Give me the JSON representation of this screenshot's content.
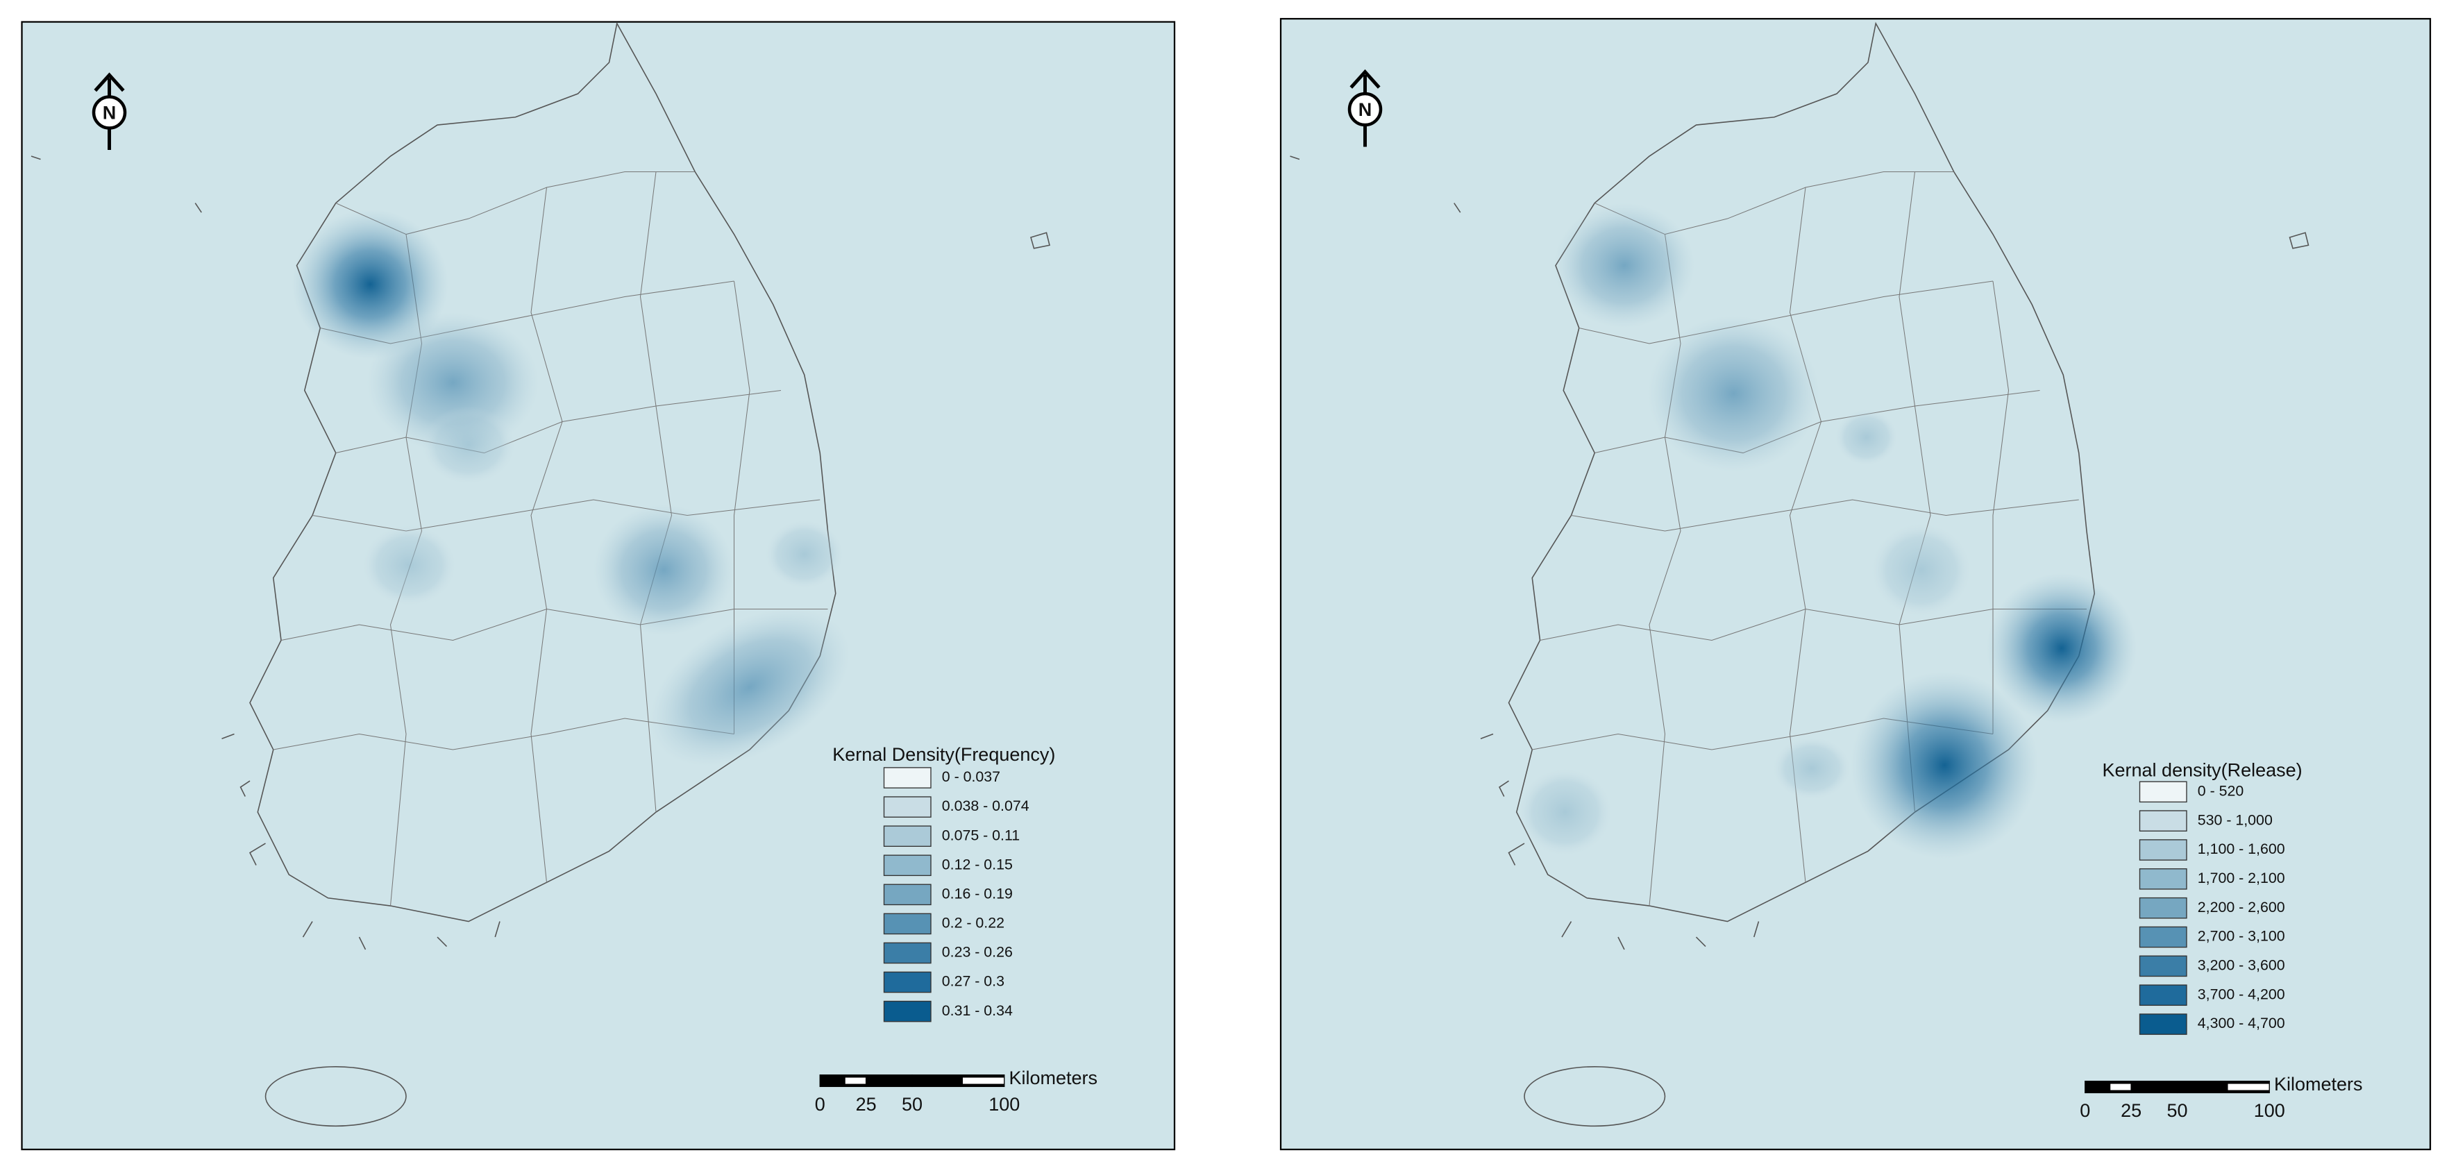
{
  "maps": [
    {
      "north": "N",
      "legend": {
        "title": "Kernal Density(Frequency)",
        "classes": [
          {
            "label": "0 - 0.037",
            "color": "#eef5f7"
          },
          {
            "label": "0.038 - 0.074",
            "color": "#c9dde5"
          },
          {
            "label": "0.075 - 0.11",
            "color": "#abcad8"
          },
          {
            "label": "0.12 - 0.15",
            "color": "#90b9cd"
          },
          {
            "label": "0.16 - 0.19",
            "color": "#76a7c1"
          },
          {
            "label": "0.2 - 0.22",
            "color": "#5792b4"
          },
          {
            "label": "0.23 - 0.26",
            "color": "#3b7ea7"
          },
          {
            "label": "0.27 - 0.3",
            "color": "#1f6b9c"
          },
          {
            "label": "0.31 - 0.34",
            "color": "#0a5c8f"
          }
        ]
      },
      "scale_bar": {
        "unit": "Kilometers",
        "ticks": [
          0,
          25,
          50,
          100
        ]
      }
    },
    {
      "north": "N",
      "legend": {
        "title": "Kernal density(Release)",
        "classes": [
          {
            "label": "0 - 520",
            "color": "#eef5f7"
          },
          {
            "label": "530 - 1,000",
            "color": "#c9dde5"
          },
          {
            "label": "1,100 - 1,600",
            "color": "#abcad8"
          },
          {
            "label": "1,700 - 2,100",
            "color": "#90b9cd"
          },
          {
            "label": "2,200 - 2,600",
            "color": "#76a7c1"
          },
          {
            "label": "2,700 - 3,100",
            "color": "#5792b4"
          },
          {
            "label": "3,200 - 3,600",
            "color": "#3b7ea7"
          },
          {
            "label": "3,700 - 4,200",
            "color": "#1f6b9c"
          },
          {
            "label": "4,300 - 4,700",
            "color": "#0a5c8f"
          }
        ]
      },
      "scale_bar": {
        "unit": "Kilometers",
        "ticks": [
          0,
          25,
          50,
          100
        ]
      }
    }
  ]
}
